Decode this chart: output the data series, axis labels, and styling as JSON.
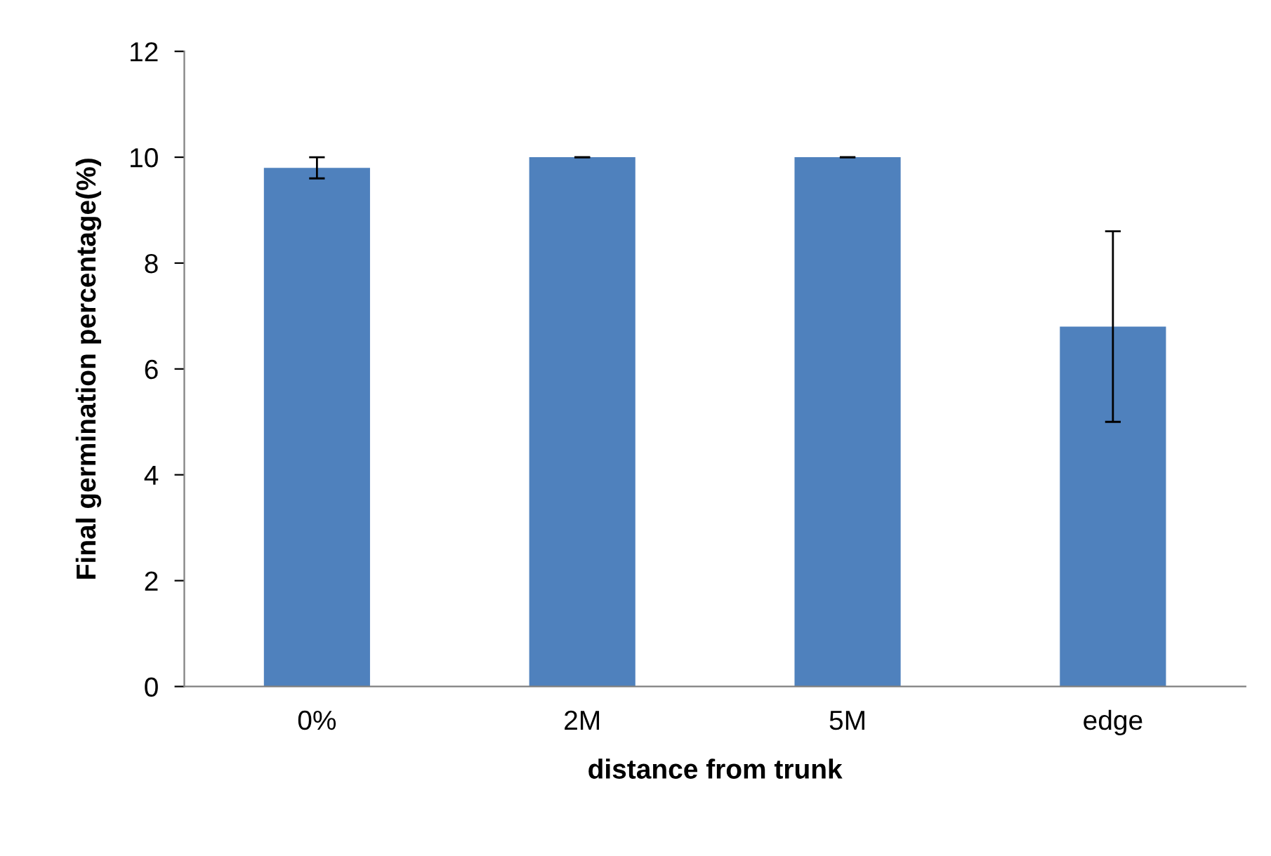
{
  "chart_data": {
    "type": "bar",
    "xlabel": "distance from trunk",
    "ylabel": "Final germination percentage(%)",
    "categories": [
      "0%",
      "2M",
      "5M",
      "edge"
    ],
    "values": [
      9.8,
      10,
      10,
      6.8
    ],
    "errors": [
      0.2,
      0,
      0,
      1.8
    ],
    "color": "#4f81bd",
    "ylim": [
      0,
      12
    ],
    "yticks": [
      0,
      2,
      4,
      6,
      8,
      10,
      12
    ],
    "grid": false
  }
}
